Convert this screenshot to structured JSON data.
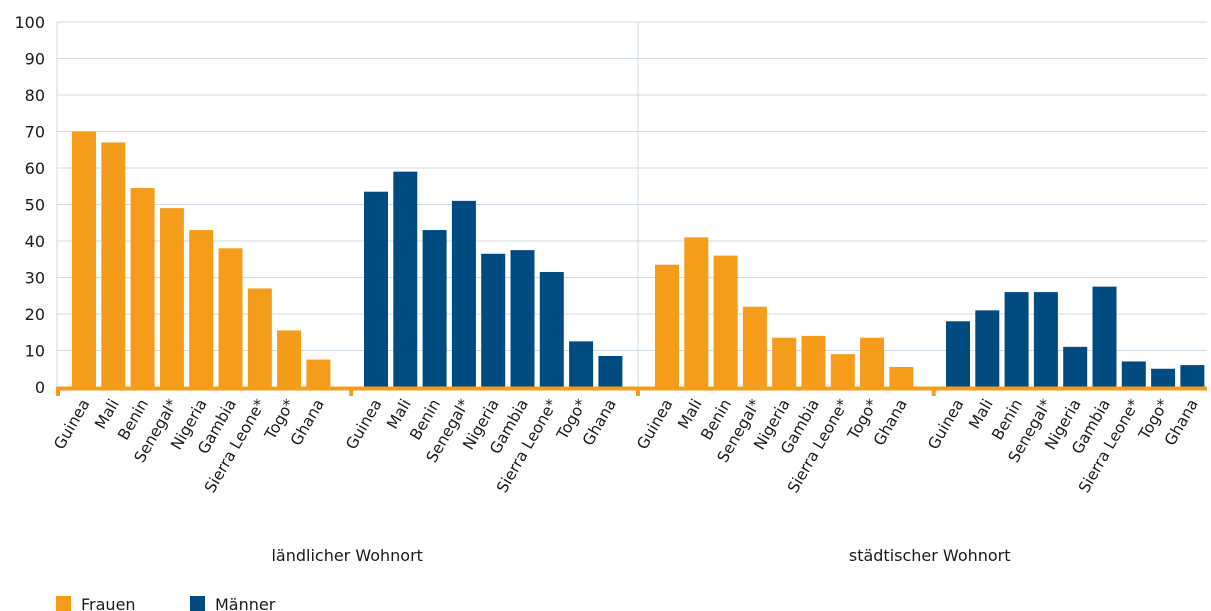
{
  "chart_data": {
    "type": "bar",
    "ylim": [
      0,
      100
    ],
    "yticks": [
      0,
      10,
      20,
      30,
      40,
      50,
      60,
      70,
      80,
      90,
      100
    ],
    "grid": true,
    "legend_position": "bottom-left",
    "colors": {
      "Frauen": "#f59c1a",
      "Männer": "#004b7f",
      "axis": "#f59c1a",
      "grid": "#cfdbe6"
    },
    "categories": [
      "Guinea",
      "Mali",
      "Benin",
      "Senegal*",
      "Nigeria",
      "Gambia",
      "Sierra Leone*",
      "Togo*",
      "Ghana"
    ],
    "groups": [
      {
        "label": "ländlicher Wohnort",
        "series": [
          {
            "name": "Frauen",
            "values": [
              70,
              67,
              54.5,
              49,
              43,
              38,
              27,
              15.5,
              7.5
            ]
          },
          {
            "name": "Männer",
            "values": [
              53.5,
              59,
              43,
              51,
              36.5,
              37.5,
              31.5,
              12.5,
              8.5
            ]
          }
        ]
      },
      {
        "label": "städtischer Wohnort",
        "series": [
          {
            "name": "Frauen",
            "values": [
              33.5,
              41,
              36,
              22,
              13.5,
              14,
              9,
              13.5,
              5.5
            ]
          },
          {
            "name": "Männer",
            "values": [
              18,
              21,
              26,
              26,
              11,
              27.5,
              7,
              5,
              6
            ]
          }
        ]
      }
    ],
    "legend": [
      "Frauen",
      "Männer"
    ]
  }
}
